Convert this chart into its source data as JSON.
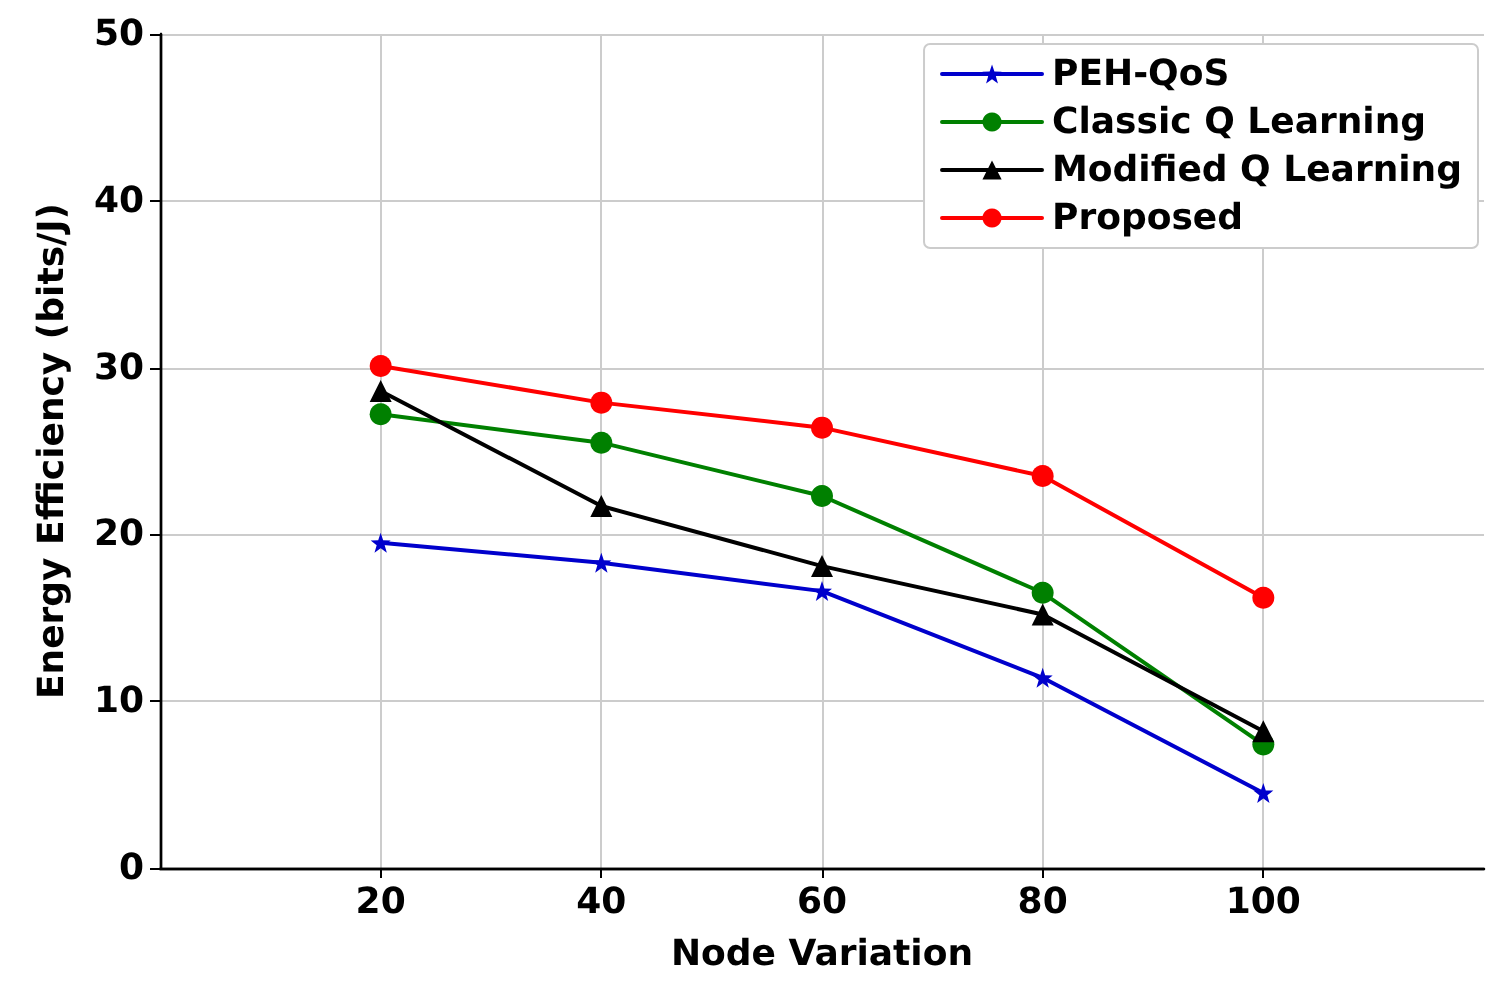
{
  "chart_data": {
    "type": "line",
    "xlabel": "Node Variation",
    "ylabel": "Energy Efficiency (bits/J)",
    "x": [
      20,
      40,
      60,
      80,
      100
    ],
    "series": [
      {
        "name": "PEH-QoS",
        "color": "#0000cc",
        "marker": "star",
        "values": [
          19.5,
          18.3,
          16.6,
          11.4,
          4.5
        ]
      },
      {
        "name": "Classic Q Learning",
        "color": "#008000",
        "marker": "circle",
        "values": [
          27.2,
          25.5,
          22.3,
          16.5,
          7.4
        ]
      },
      {
        "name": "Modified Q Learning",
        "color": "#000000",
        "marker": "triangle",
        "values": [
          28.6,
          21.7,
          18.1,
          15.2,
          8.2
        ]
      },
      {
        "name": "Proposed",
        "color": "#ff0000",
        "marker": "circle",
        "values": [
          30.1,
          27.9,
          26.4,
          23.5,
          16.2
        ]
      }
    ],
    "xlim": [
      0,
      120
    ],
    "xticks": [
      20,
      40,
      60,
      80,
      100
    ],
    "ylim": [
      0,
      50
    ],
    "yticks": [
      0,
      10,
      20,
      30,
      40,
      50
    ],
    "grid": true,
    "legend": "top right",
    "line_style": "solid"
  }
}
